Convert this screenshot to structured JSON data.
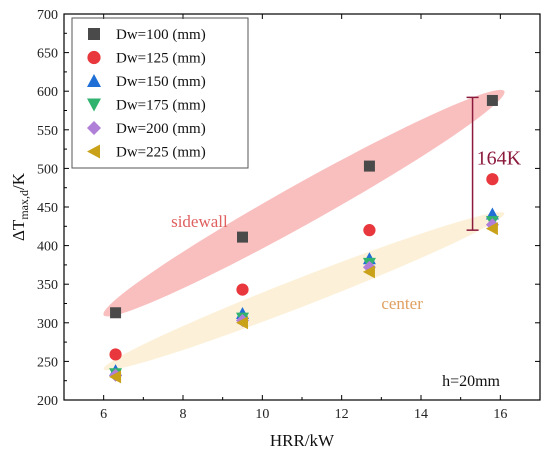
{
  "chart_data": {
    "type": "scatter",
    "xlabel": "HRR/kW",
    "ylabel_main": "ΔT",
    "ylabel_sub": "max,d",
    "ylabel_tail": "/K",
    "xlim": [
      5,
      17
    ],
    "ylim": [
      200,
      700
    ],
    "x_ticks": [
      6,
      8,
      10,
      12,
      14,
      16
    ],
    "y_ticks": [
      200,
      250,
      300,
      350,
      400,
      450,
      500,
      550,
      600,
      650,
      700
    ],
    "grid": false,
    "legend_position": "top-left",
    "series": [
      {
        "name": "Dw=100 (mm)",
        "marker": "square",
        "color": "#4a4a4a",
        "x": [
          6.3,
          9.5,
          12.7,
          15.8
        ],
        "y": [
          313,
          411,
          503,
          588
        ]
      },
      {
        "name": "Dw=125 (mm)",
        "marker": "circle",
        "color": "#e8383d",
        "x": [
          6.3,
          9.5,
          12.7,
          15.8
        ],
        "y": [
          259,
          343,
          420,
          486
        ]
      },
      {
        "name": "Dw=150 (mm)",
        "marker": "triangle-up",
        "color": "#1f6fd6",
        "x": [
          6.3,
          9.5,
          12.7,
          15.8
        ],
        "y": [
          238,
          312,
          383,
          441
        ]
      },
      {
        "name": "Dw=175 (mm)",
        "marker": "triangle-down",
        "color": "#2fb36e",
        "x": [
          6.3,
          9.5,
          12.7,
          15.8
        ],
        "y": [
          234,
          306,
          377,
          431
        ]
      },
      {
        "name": "Dw=200 (mm)",
        "marker": "diamond",
        "color": "#b07fd8",
        "x": [
          6.3,
          9.5,
          12.7,
          15.8
        ],
        "y": [
          232,
          303,
          372,
          427
        ]
      },
      {
        "name": "Dw=225 (mm)",
        "marker": "triangle-left",
        "color": "#c9a21a",
        "x": [
          6.3,
          9.5,
          12.7,
          15.8
        ],
        "y": [
          230,
          300,
          366,
          422
        ]
      }
    ],
    "bands": [
      {
        "label": "sidewall",
        "color": "#f7a9a9",
        "label_color": "#e06060",
        "from": [
          6.0,
          310
        ],
        "to": [
          16.1,
          600
        ],
        "half_width": 20,
        "label_at": [
          7.7,
          424
        ]
      },
      {
        "label": "center",
        "color": "#fbeccb",
        "label_color": "#e0a060",
        "from": [
          6.0,
          240
        ],
        "to": [
          16.1,
          442
        ],
        "half_width": 14,
        "label_at": [
          13.0,
          318
        ]
      }
    ],
    "range_bracket": {
      "x": 15.3,
      "y_top": 592,
      "y_bottom": 420,
      "label": "164K",
      "color": "#8b1a3d"
    },
    "note": "h=20mm"
  }
}
